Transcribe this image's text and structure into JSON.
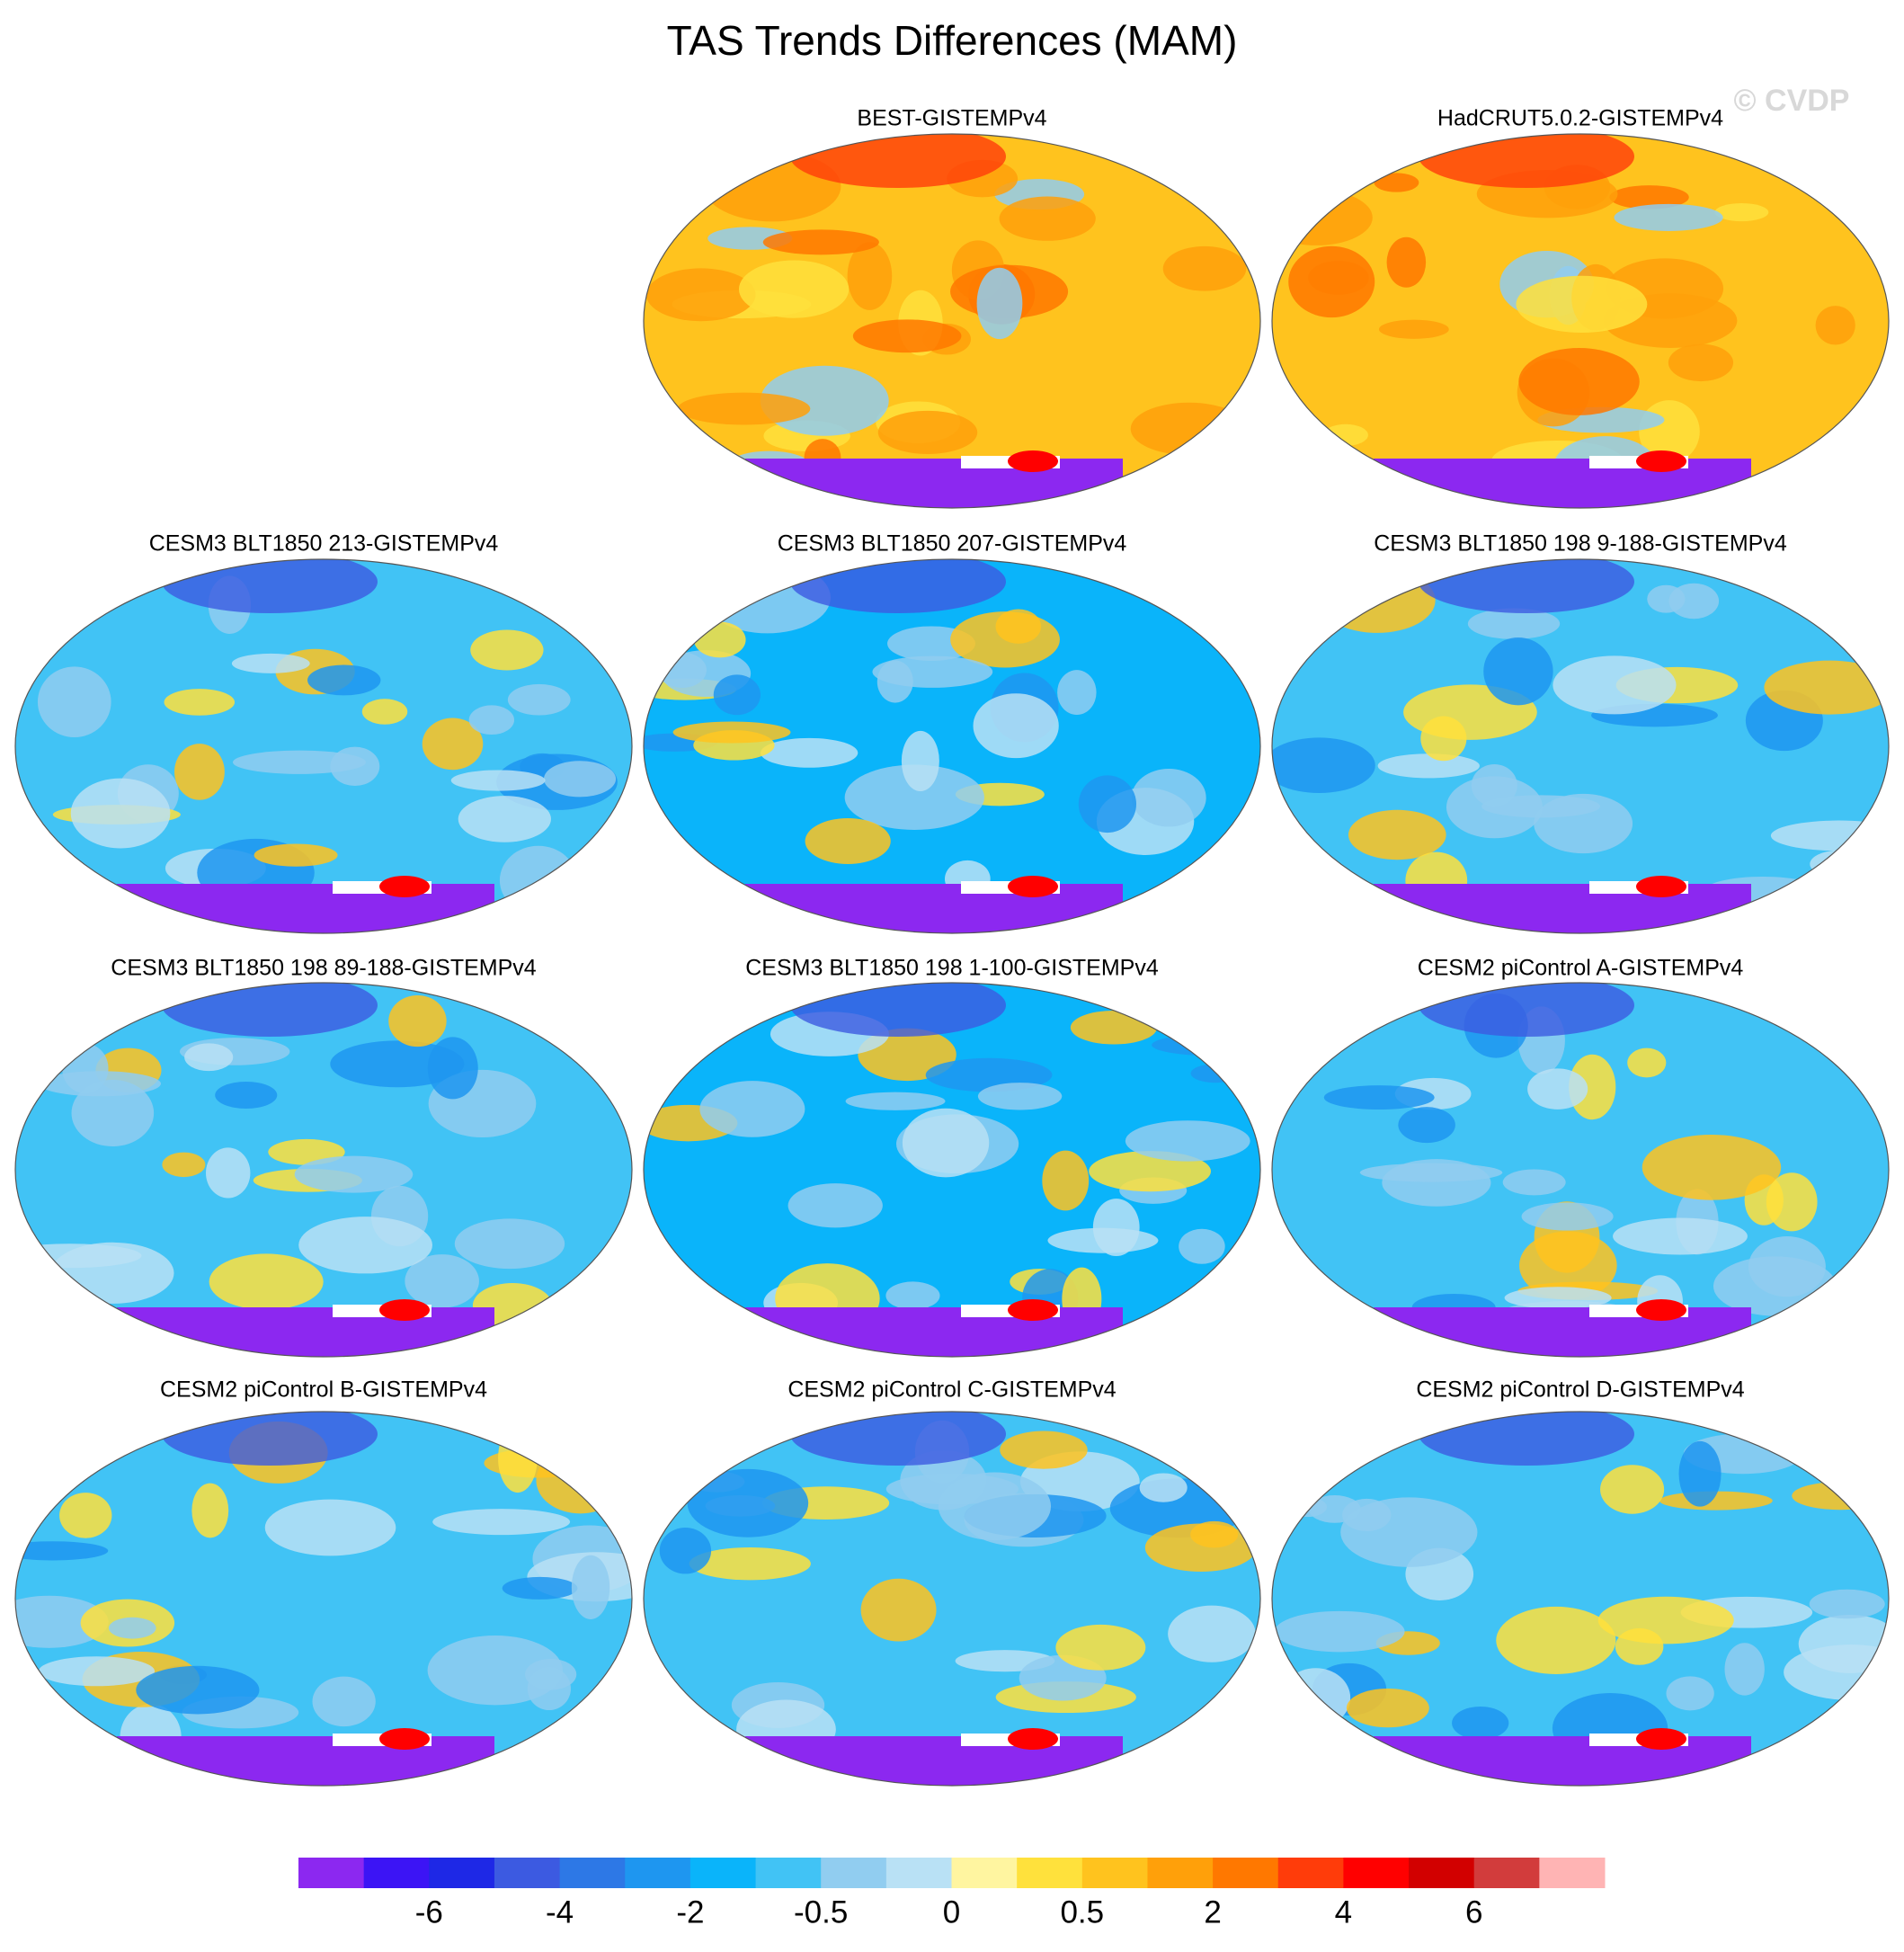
{
  "title": "TAS Trends Differences (MAM)",
  "watermark": "© CVDP",
  "panels": [
    {
      "title": "BEST-GISTEMPv4",
      "color": "#ffc31e"
    },
    {
      "title": "HadCRUT5.0.2-GISTEMPv4",
      "color": "#ffc31e"
    },
    {
      "title": "CESM3 BLT1850 213-GISTEMPv4",
      "color": "#41c3f5"
    },
    {
      "title": "CESM3 BLT1850 207-GISTEMPv4",
      "color": "#0ab4fa"
    },
    {
      "title": "CESM3 BLT1850 198 9-188-GISTEMPv4",
      "color": "#41c3f5"
    },
    {
      "title": "CESM3 BLT1850 198 89-188-GISTEMPv4",
      "color": "#41c3f5"
    },
    {
      "title": "CESM3 BLT1850 198 1-100-GISTEMPv4",
      "color": "#0ab4fa"
    },
    {
      "title": "CESM2 piControl A-GISTEMPv4",
      "color": "#41c3f5"
    },
    {
      "title": "CESM2 piControl B-GISTEMPv4",
      "color": "#41c3f5"
    },
    {
      "title": "CESM2 piControl C-GISTEMPv4",
      "color": "#41c3f5"
    },
    {
      "title": "CESM2 piControl D-GISTEMPv4",
      "color": "#41c3f5"
    }
  ],
  "colorbar": {
    "colors": [
      "#8c28f0",
      "#3c14f5",
      "#1e28e6",
      "#3c5ae1",
      "#2d78e6",
      "#1e96f0",
      "#0ab4fa",
      "#41c3f5",
      "#91cdf0",
      "#b9e1f5",
      "#fff5a0",
      "#ffe13c",
      "#ffc31e",
      "#ffa00a",
      "#ff7800",
      "#ff3c0a",
      "#ff0000",
      "#d20000",
      "#d23c3c",
      "#ffb4b4"
    ],
    "labels": [
      -6,
      -4,
      -2,
      -0.5,
      0,
      0.5,
      2,
      4,
      6
    ]
  }
}
